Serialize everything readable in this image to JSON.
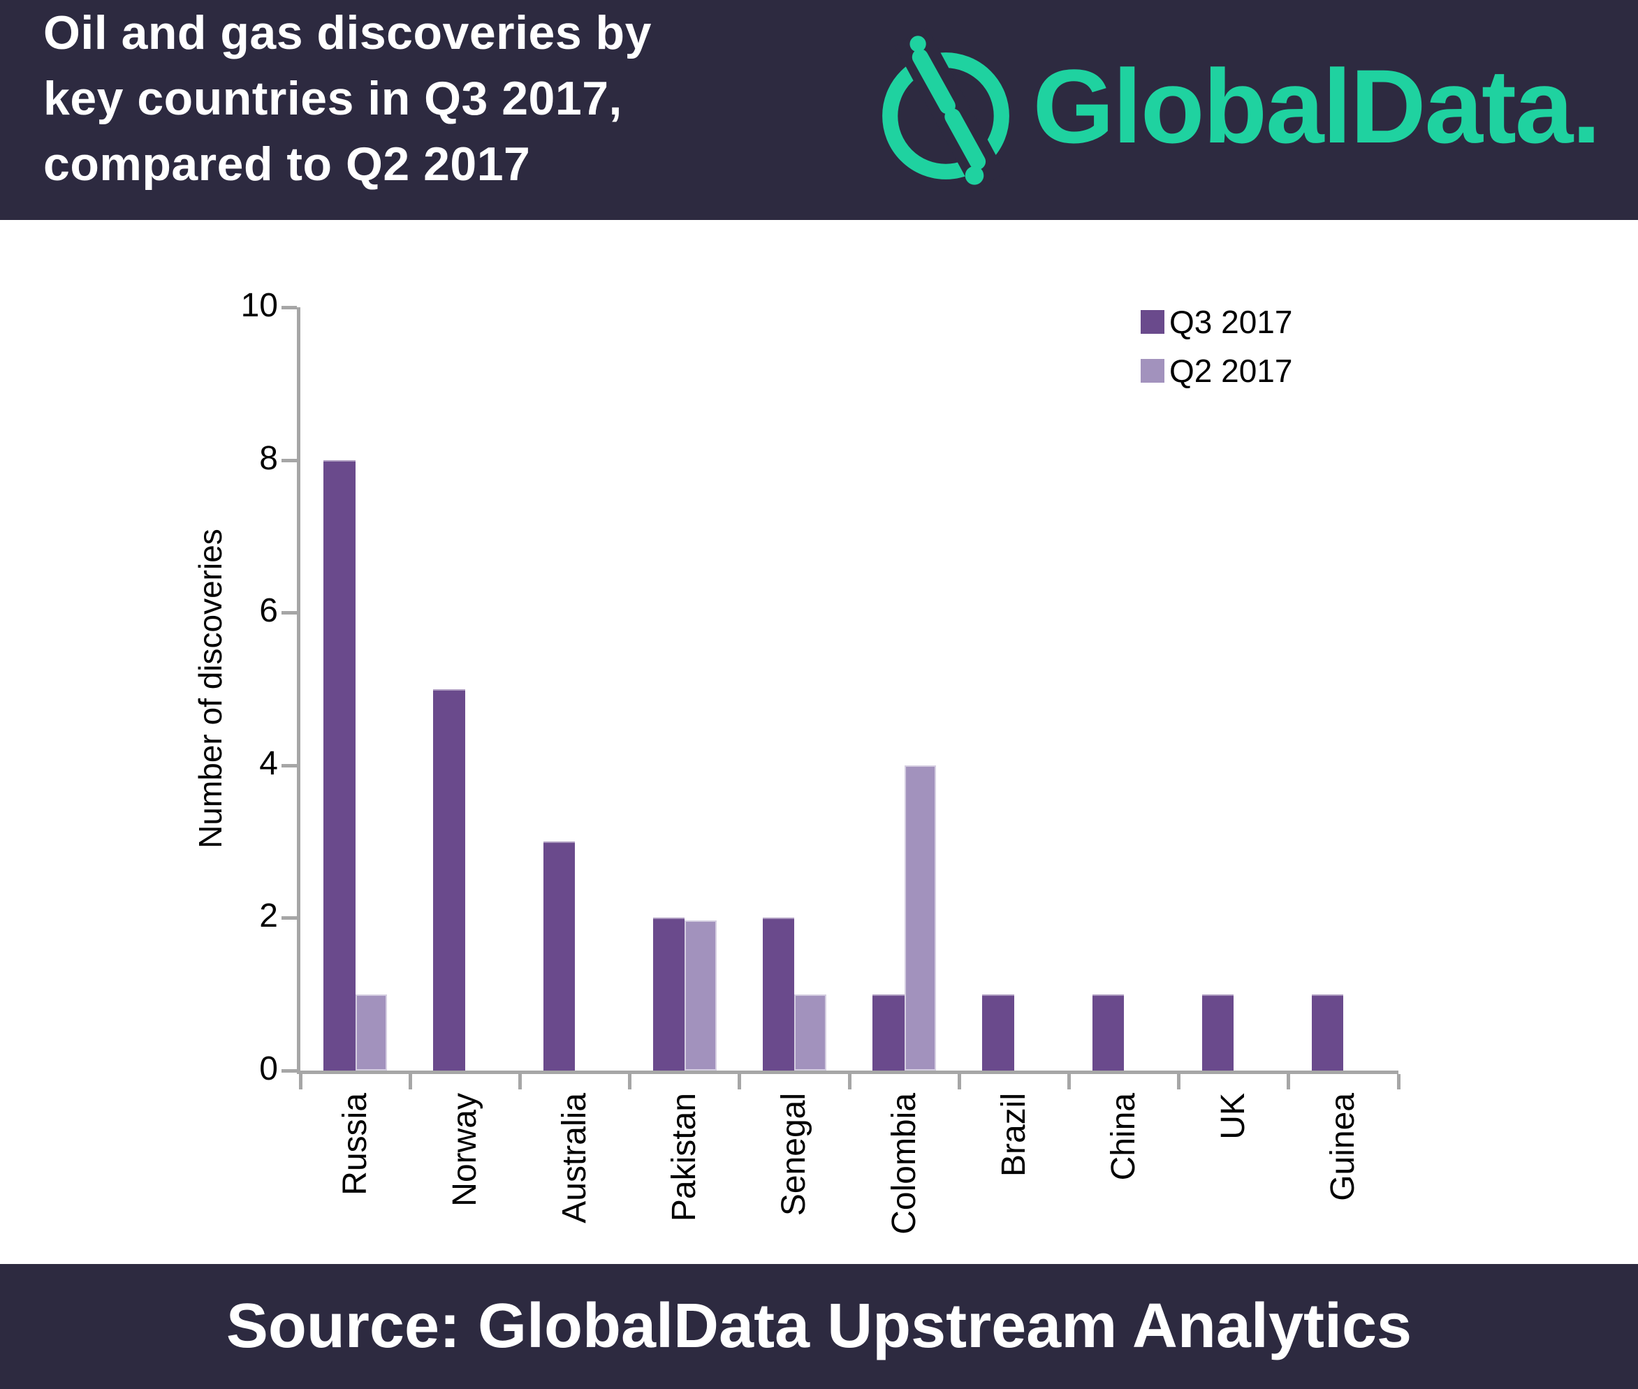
{
  "header": {
    "title_lines": [
      "Oil and gas discoveries by",
      "key countries in Q3 2017,",
      "compared to Q2 2017"
    ],
    "logo_text": "GlobalData."
  },
  "footer": {
    "source_text": "Source: GlobalData Upstream Analytics"
  },
  "colors": {
    "header_bg": "#2d2a40",
    "brand_green": "#1fd2a0",
    "axis_gray": "#a6a6a6",
    "q3_purple": "#6a4a8c",
    "q2_purple": "#a292bd"
  },
  "chart_data": {
    "type": "bar",
    "title": "Oil and gas discoveries by key countries in Q3 2017, compared to Q2 2017",
    "categories": [
      "Russia",
      "Norway",
      "Australia",
      "Pakistan",
      "Senegal",
      "Colombia",
      "Brazil",
      "China",
      "UK",
      "Guinea"
    ],
    "series": [
      {
        "name": "Q3 2017",
        "color": "#6a4a8c",
        "values": [
          8,
          5,
          3,
          2,
          2,
          1,
          1,
          1,
          1,
          1
        ]
      },
      {
        "name": "Q2 2017",
        "color": "#a292bd",
        "values": [
          1,
          0,
          0,
          1.97,
          1,
          4,
          0,
          0,
          0,
          0
        ]
      }
    ],
    "xlabel": "",
    "ylabel": "Number of discoveries",
    "ylim": [
      0,
      10
    ],
    "yticks": [
      0,
      2,
      4,
      6,
      8,
      10
    ],
    "grid": false,
    "legend_position": "top-right"
  }
}
